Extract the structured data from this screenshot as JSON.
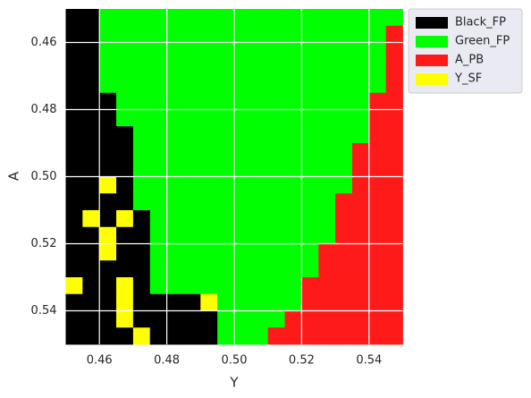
{
  "chart_data": {
    "type": "heatmap",
    "x_label": "Y",
    "y_label": "A",
    "xlim": [
      0.45,
      0.55
    ],
    "ylim": [
      0.55,
      0.45
    ],
    "xticks": [
      0.46,
      0.48,
      {
        "value": 0.5,
        "label": "0.50"
      },
      0.52,
      0.54
    ],
    "yticks": [
      0.46,
      0.48,
      {
        "value": 0.5,
        "label": "0.50"
      },
      0.52,
      0.54
    ],
    "grid": true,
    "legend": "outside upper right",
    "categories": [
      "Black_FP",
      "Green_FP",
      "A_PB",
      "Y_SF"
    ],
    "colors": [
      "#000000",
      "#00ff00",
      "#ff1a1a",
      "#ffff00"
    ],
    "z": [
      [
        0,
        0,
        1,
        1,
        1,
        1,
        1,
        1,
        1,
        1,
        1,
        1,
        1,
        1,
        1,
        1,
        1,
        1,
        1,
        1
      ],
      [
        0,
        0,
        1,
        1,
        1,
        1,
        1,
        1,
        1,
        1,
        1,
        1,
        1,
        1,
        1,
        1,
        1,
        1,
        1,
        2
      ],
      [
        0,
        0,
        1,
        1,
        1,
        1,
        1,
        1,
        1,
        1,
        1,
        1,
        1,
        1,
        1,
        1,
        1,
        1,
        1,
        2
      ],
      [
        0,
        0,
        1,
        1,
        1,
        1,
        1,
        1,
        1,
        1,
        1,
        1,
        1,
        1,
        1,
        1,
        1,
        1,
        1,
        2
      ],
      [
        0,
        0,
        1,
        1,
        1,
        1,
        1,
        1,
        1,
        1,
        1,
        1,
        1,
        1,
        1,
        1,
        1,
        1,
        1,
        2
      ],
      [
        0,
        0,
        0,
        1,
        1,
        1,
        1,
        1,
        1,
        1,
        1,
        1,
        1,
        1,
        1,
        1,
        1,
        1,
        2,
        2
      ],
      [
        0,
        0,
        0,
        1,
        1,
        1,
        1,
        1,
        1,
        1,
        1,
        1,
        1,
        1,
        1,
        1,
        1,
        1,
        2,
        2
      ],
      [
        0,
        0,
        0,
        0,
        1,
        1,
        1,
        1,
        1,
        1,
        1,
        1,
        1,
        1,
        1,
        1,
        1,
        1,
        2,
        2
      ],
      [
        0,
        0,
        0,
        0,
        1,
        1,
        1,
        1,
        1,
        1,
        1,
        1,
        1,
        1,
        1,
        1,
        1,
        2,
        2,
        2
      ],
      [
        0,
        0,
        0,
        0,
        1,
        1,
        1,
        1,
        1,
        1,
        1,
        1,
        1,
        1,
        1,
        1,
        1,
        2,
        2,
        2
      ],
      [
        0,
        0,
        3,
        0,
        1,
        1,
        1,
        1,
        1,
        1,
        1,
        1,
        1,
        1,
        1,
        1,
        1,
        2,
        2,
        2
      ],
      [
        0,
        0,
        0,
        0,
        1,
        1,
        1,
        1,
        1,
        1,
        1,
        1,
        1,
        1,
        1,
        1,
        2,
        2,
        2,
        2
      ],
      [
        0,
        3,
        0,
        3,
        0,
        1,
        1,
        1,
        1,
        1,
        1,
        1,
        1,
        1,
        1,
        1,
        2,
        2,
        2,
        2
      ],
      [
        0,
        0,
        3,
        0,
        0,
        1,
        1,
        1,
        1,
        1,
        1,
        1,
        1,
        1,
        1,
        1,
        2,
        2,
        2,
        2
      ],
      [
        0,
        0,
        3,
        0,
        0,
        1,
        1,
        1,
        1,
        1,
        1,
        1,
        1,
        1,
        1,
        2,
        2,
        2,
        2,
        2
      ],
      [
        0,
        0,
        0,
        0,
        0,
        1,
        1,
        1,
        1,
        1,
        1,
        1,
        1,
        1,
        1,
        2,
        2,
        2,
        2,
        2
      ],
      [
        3,
        0,
        0,
        3,
        0,
        1,
        1,
        1,
        1,
        1,
        1,
        1,
        1,
        1,
        2,
        2,
        2,
        2,
        2,
        2
      ],
      [
        0,
        0,
        0,
        3,
        0,
        0,
        0,
        0,
        3,
        1,
        1,
        1,
        1,
        1,
        2,
        2,
        2,
        2,
        2,
        2
      ],
      [
        0,
        0,
        0,
        3,
        0,
        0,
        0,
        0,
        0,
        1,
        1,
        1,
        1,
        2,
        2,
        2,
        2,
        2,
        2,
        2
      ],
      [
        0,
        0,
        0,
        0,
        3,
        0,
        0,
        0,
        0,
        1,
        1,
        1,
        2,
        2,
        2,
        2,
        2,
        2,
        2,
        2
      ]
    ]
  }
}
